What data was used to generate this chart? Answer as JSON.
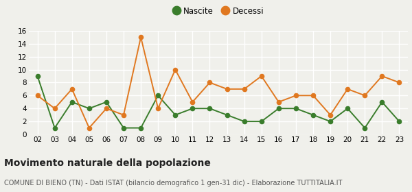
{
  "years": [
    "02",
    "03",
    "04",
    "05",
    "06",
    "07",
    "08",
    "09",
    "10",
    "11",
    "12",
    "13",
    "14",
    "15",
    "16",
    "17",
    "18",
    "19",
    "20",
    "21",
    "22",
    "23"
  ],
  "nascite": [
    9,
    1,
    5,
    4,
    5,
    1,
    1,
    6,
    3,
    4,
    4,
    3,
    2,
    2,
    4,
    4,
    3,
    2,
    4,
    1,
    5,
    2
  ],
  "decessi": [
    6,
    4,
    7,
    1,
    4,
    3,
    15,
    4,
    10,
    5,
    8,
    7,
    7,
    9,
    5,
    6,
    6,
    3,
    7,
    6,
    9,
    8
  ],
  "nascite_color": "#3a7d2c",
  "decessi_color": "#e07820",
  "bg_color": "#f0f0eb",
  "grid_color": "#ffffff",
  "ylim": [
    0,
    16
  ],
  "yticks": [
    0,
    2,
    4,
    6,
    8,
    10,
    12,
    14,
    16
  ],
  "title": "Movimento naturale della popolazione",
  "subtitle": "COMUNE DI BIENO (TN) - Dati ISTAT (bilancio demografico 1 gen-31 dic) - Elaborazione TUTTITALIA.IT",
  "legend_nascite": "Nascite",
  "legend_decessi": "Decessi",
  "title_fontsize": 10,
  "subtitle_fontsize": 7,
  "tick_fontsize": 7.5,
  "legend_fontsize": 8.5,
  "marker_size": 4.5,
  "line_width": 1.4
}
